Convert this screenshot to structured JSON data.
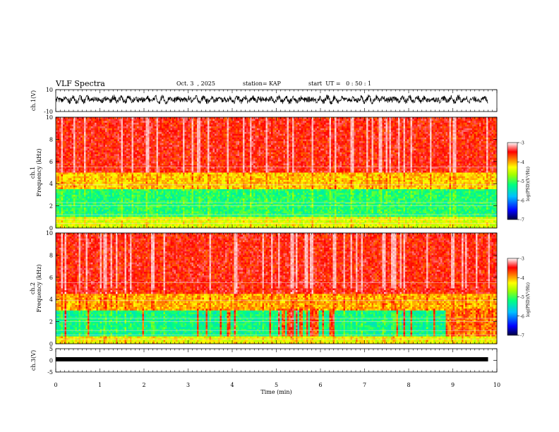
{
  "header": {
    "title": "VLF Spectra",
    "date": "Oct. 3  , 2025",
    "station": "station= KAP",
    "start_ut": "start  UT =   0 : 50 : 1"
  },
  "colors": {
    "waveform": "#000000",
    "colormap": [
      "#000060",
      "#0000ff",
      "#00a0ff",
      "#00ff90",
      "#80ff00",
      "#ffff00",
      "#ff8000",
      "#ff0000",
      "#ffe0e0"
    ]
  },
  "chart_data": [
    {
      "type": "line",
      "name": "ch1-waveform",
      "ylabel": "ch.1(V)",
      "ylim": [
        -10,
        10
      ],
      "yticks": [
        "10",
        "-10"
      ],
      "xlim": [
        0,
        10
      ],
      "note": "voltage waveform, approx. range -2 to 5 V oscillating around 1 V"
    },
    {
      "type": "heatmap",
      "name": "ch1-spectrogram",
      "ylabel": "ch.1\nFrequency  (kHz)",
      "ylim": [
        0,
        10
      ],
      "yticks": [
        "0",
        "2",
        "4",
        "6",
        "8",
        "10"
      ],
      "xlim": [
        0,
        10
      ],
      "colorbar": {
        "label": "log(PSD)(V²/Hz)",
        "range": [
          -7,
          -3
        ],
        "ticks": [
          "-3",
          "-4",
          "-5",
          "-6",
          "-7"
        ]
      },
      "bands": [
        {
          "from_khz": 0,
          "to_khz": 1,
          "level": -4.5
        },
        {
          "from_khz": 1,
          "to_khz": 3.5,
          "level": -5.2
        },
        {
          "from_khz": 3.5,
          "to_khz": 5,
          "level": -4.2
        },
        {
          "from_khz": 5,
          "to_khz": 10,
          "level": -3.6
        }
      ]
    },
    {
      "type": "heatmap",
      "name": "ch2-spectrogram",
      "ylabel": "ch.2\nFrequency  (kHz)",
      "ylim": [
        0,
        10
      ],
      "yticks": [
        "0",
        "2",
        "4",
        "6",
        "8",
        "10"
      ],
      "xlim": [
        0,
        10
      ],
      "colorbar": {
        "label": "log(PSD)(V²/Hz)",
        "range": [
          -7,
          -3
        ],
        "ticks": [
          "-3",
          "-4",
          "-5",
          "-6",
          "-7"
        ]
      },
      "bands": [
        {
          "from_khz": 0,
          "to_khz": 0.6,
          "level": -4.4
        },
        {
          "from_khz": 0.6,
          "to_khz": 3.0,
          "level": -5.3
        },
        {
          "from_khz": 3.0,
          "to_khz": 4.5,
          "level": -4.1
        },
        {
          "from_khz": 4.5,
          "to_khz": 10,
          "level": -3.6
        }
      ],
      "quiet_after_min": 8.8
    },
    {
      "type": "line",
      "name": "ch3-waveform",
      "ylabel": "ch.3(V)",
      "ylim": [
        -5,
        5
      ],
      "yticks": [
        "5",
        "0",
        "-5"
      ],
      "xlim": [
        0,
        10
      ],
      "xlabel": "Time  (min)",
      "xticks": [
        "0",
        "1",
        "2",
        "3",
        "4",
        "5",
        "6",
        "7",
        "8",
        "9",
        "10"
      ],
      "note": "thick flat band near 0 V"
    }
  ]
}
